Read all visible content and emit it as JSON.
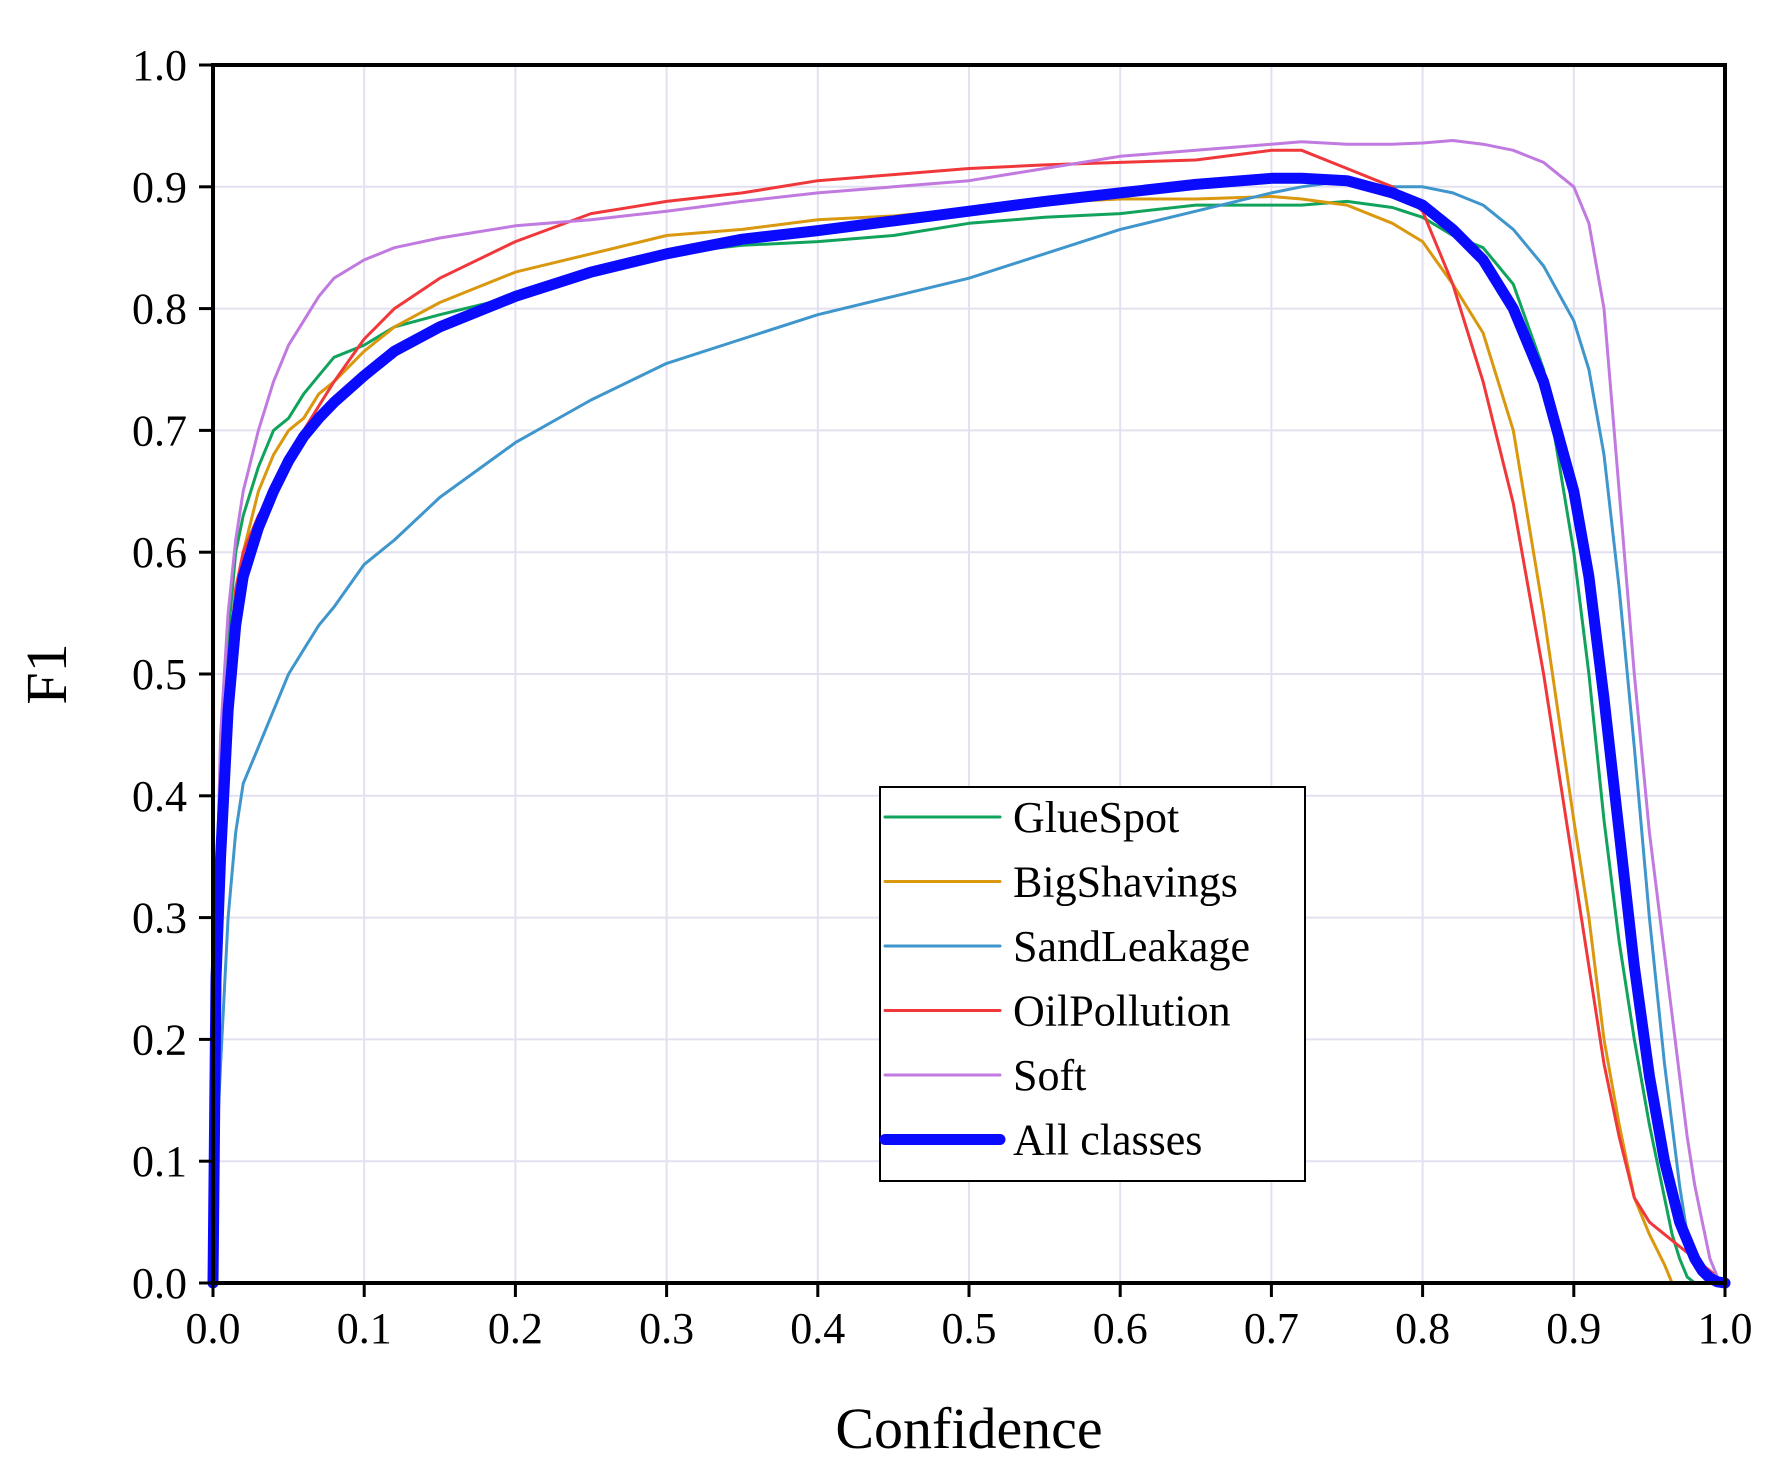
{
  "chart_data": {
    "type": "line",
    "title": "",
    "xlabel": "Confidence",
    "ylabel": "F1",
    "xlim": [
      0.0,
      1.0
    ],
    "ylim": [
      0.0,
      1.0
    ],
    "grid": true,
    "legend_position": "bottom-center",
    "x_ticks": [
      "0.0",
      "0.1",
      "0.2",
      "0.3",
      "0.4",
      "0.5",
      "0.6",
      "0.7",
      "0.8",
      "0.9",
      "1.0"
    ],
    "y_ticks": [
      "0.0",
      "0.1",
      "0.2",
      "0.3",
      "0.4",
      "0.5",
      "0.6",
      "0.7",
      "0.8",
      "0.9",
      "1.0"
    ],
    "x": [
      0.0,
      0.002,
      0.005,
      0.01,
      0.015,
      0.02,
      0.03,
      0.04,
      0.05,
      0.06,
      0.07,
      0.08,
      0.1,
      0.12,
      0.15,
      0.2,
      0.25,
      0.3,
      0.35,
      0.4,
      0.45,
      0.5,
      0.55,
      0.6,
      0.65,
      0.7,
      0.72,
      0.75,
      0.78,
      0.8,
      0.82,
      0.84,
      0.86,
      0.88,
      0.9,
      0.91,
      0.92,
      0.93,
      0.94,
      0.95,
      0.96,
      0.965,
      0.97,
      0.975,
      0.98,
      0.985,
      0.99,
      0.995,
      1.0
    ],
    "series": [
      {
        "name": "GlueSpot",
        "color": "#11a35b",
        "width": 3,
        "values": [
          0.0,
          0.3,
          0.42,
          0.53,
          0.6,
          0.63,
          0.67,
          0.7,
          0.71,
          0.73,
          0.745,
          0.76,
          0.77,
          0.785,
          0.795,
          0.81,
          0.83,
          0.845,
          0.852,
          0.855,
          0.86,
          0.87,
          0.875,
          0.878,
          0.885,
          0.885,
          0.885,
          0.888,
          0.883,
          0.875,
          0.86,
          0.85,
          0.82,
          0.75,
          0.6,
          0.5,
          0.38,
          0.28,
          0.2,
          0.13,
          0.07,
          0.04,
          0.02,
          0.005,
          0.0,
          null,
          null,
          null,
          null
        ]
      },
      {
        "name": "BigShavings",
        "color": "#d9980e",
        "width": 3,
        "values": [
          0.0,
          0.2,
          0.3,
          0.45,
          0.55,
          0.6,
          0.65,
          0.68,
          0.7,
          0.71,
          0.73,
          0.74,
          0.765,
          0.785,
          0.805,
          0.83,
          0.845,
          0.86,
          0.865,
          0.873,
          0.876,
          0.882,
          0.887,
          0.89,
          0.89,
          0.892,
          0.89,
          0.885,
          0.87,
          0.855,
          0.82,
          0.78,
          0.7,
          0.55,
          0.38,
          0.3,
          0.2,
          0.13,
          0.07,
          0.04,
          0.015,
          0.0,
          null,
          null,
          null,
          null,
          null,
          null,
          null
        ]
      },
      {
        "name": "SandLeakage",
        "color": "#3f96cc",
        "width": 3,
        "values": [
          0.0,
          0.1,
          0.18,
          0.3,
          0.37,
          0.41,
          0.44,
          0.47,
          0.5,
          0.52,
          0.54,
          0.555,
          0.59,
          0.61,
          0.645,
          0.69,
          0.725,
          0.755,
          0.775,
          0.795,
          0.81,
          0.825,
          0.845,
          0.865,
          0.88,
          0.895,
          0.9,
          0.905,
          0.9,
          0.9,
          0.895,
          0.885,
          0.865,
          0.835,
          0.79,
          0.75,
          0.68,
          0.57,
          0.44,
          0.3,
          0.18,
          0.13,
          0.08,
          0.04,
          0.02,
          0.01,
          0.005,
          0.0,
          null
        ]
      },
      {
        "name": "OilPollution",
        "color": "#f0383b",
        "width": 3,
        "values": [
          0.0,
          0.3,
          0.4,
          0.5,
          0.57,
          0.6,
          0.63,
          0.65,
          0.67,
          0.7,
          0.72,
          0.74,
          0.775,
          0.8,
          0.825,
          0.855,
          0.878,
          0.888,
          0.895,
          0.905,
          0.91,
          0.915,
          0.918,
          0.92,
          0.922,
          0.93,
          0.93,
          0.915,
          0.9,
          0.88,
          0.82,
          0.74,
          0.64,
          0.5,
          0.34,
          0.26,
          0.18,
          0.12,
          0.07,
          0.05,
          0.04,
          0.035,
          0.03,
          0.025,
          0.02,
          0.015,
          0.01,
          0.005,
          null
        ]
      },
      {
        "name": "Soft",
        "color": "#c17ae0",
        "width": 3,
        "values": [
          0.0,
          0.3,
          0.45,
          0.55,
          0.61,
          0.65,
          0.7,
          0.74,
          0.77,
          0.79,
          0.81,
          0.825,
          0.84,
          0.85,
          0.858,
          0.868,
          0.873,
          0.88,
          0.888,
          0.895,
          0.9,
          0.905,
          0.915,
          0.925,
          0.93,
          0.935,
          0.937,
          0.935,
          0.935,
          0.936,
          0.938,
          0.935,
          0.93,
          0.92,
          0.9,
          0.87,
          0.8,
          0.65,
          0.5,
          0.37,
          0.27,
          0.22,
          0.17,
          0.12,
          0.08,
          0.05,
          0.02,
          0.005,
          0.0
        ]
      },
      {
        "name": "All classes",
        "color": "#0a0aff",
        "width": 11,
        "values": [
          0.0,
          0.25,
          0.35,
          0.47,
          0.54,
          0.58,
          0.62,
          0.65,
          0.675,
          0.695,
          0.71,
          0.723,
          0.745,
          0.765,
          0.785,
          0.81,
          0.83,
          0.845,
          0.857,
          0.864,
          0.872,
          0.88,
          0.888,
          0.895,
          0.902,
          0.907,
          0.907,
          0.905,
          0.895,
          0.885,
          0.865,
          0.84,
          0.8,
          0.74,
          0.65,
          0.58,
          0.48,
          0.37,
          0.26,
          0.17,
          0.1,
          0.075,
          0.05,
          0.035,
          0.02,
          0.01,
          0.004,
          0.001,
          0.0
        ]
      }
    ]
  }
}
